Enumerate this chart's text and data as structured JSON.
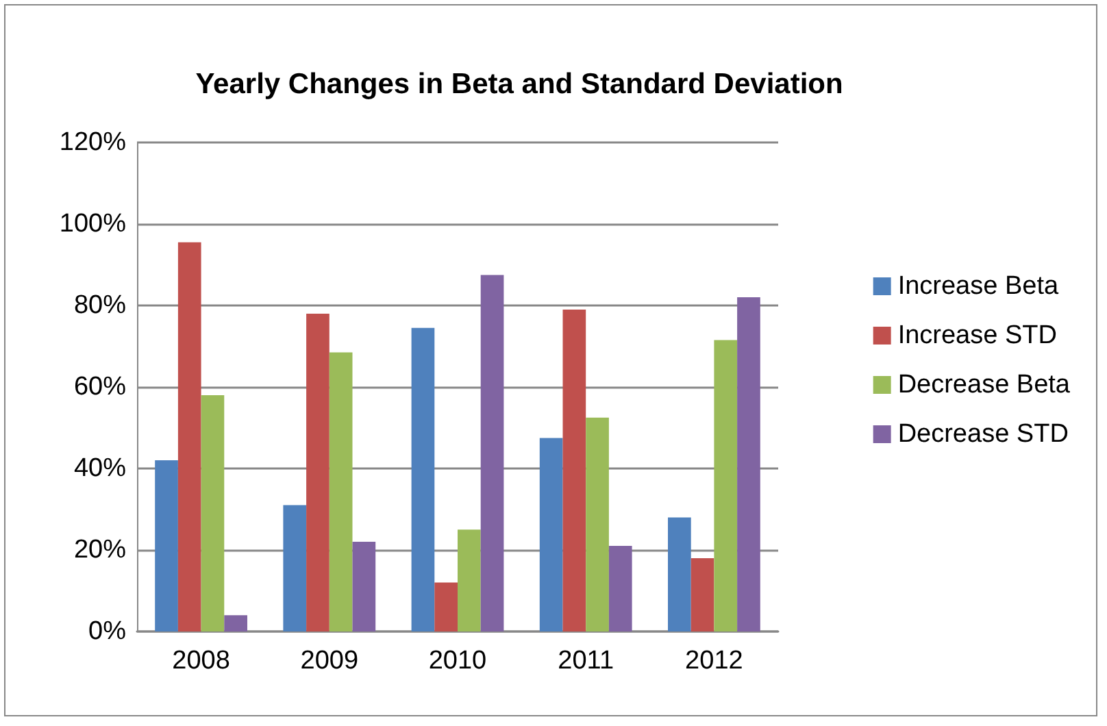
{
  "chart_data": {
    "type": "bar",
    "title": "Yearly Changes in Beta and Standard Deviation",
    "categories": [
      "2008",
      "2009",
      "2010",
      "2011",
      "2012"
    ],
    "series": [
      {
        "name": "Increase Beta",
        "color": "#4f81bd",
        "values": [
          42,
          31,
          74.5,
          47.5,
          28
        ]
      },
      {
        "name": "Increase STD",
        "color": "#c0504d",
        "values": [
          95.5,
          78,
          12,
          79,
          18
        ]
      },
      {
        "name": "Decrease Beta",
        "color": "#9bbb59",
        "values": [
          58,
          68.5,
          25,
          52.5,
          71.5
        ]
      },
      {
        "name": "Decrease STD",
        "color": "#8064a2",
        "values": [
          4,
          22,
          87.5,
          21,
          82
        ]
      }
    ],
    "ylim": [
      0,
      120
    ],
    "yticks": [
      {
        "value": 0,
        "label": "0%"
      },
      {
        "value": 20,
        "label": "20%"
      },
      {
        "value": 40,
        "label": "40%"
      },
      {
        "value": 60,
        "label": "60%"
      },
      {
        "value": 80,
        "label": "80%"
      },
      {
        "value": 100,
        "label": "100%"
      },
      {
        "value": 120,
        "label": "120%"
      }
    ],
    "grid": "y",
    "legend": "right"
  }
}
